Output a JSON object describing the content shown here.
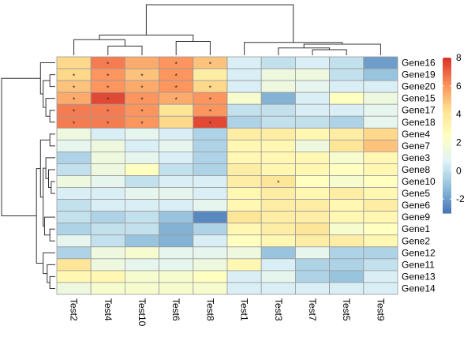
{
  "chart_data": {
    "type": "heatmap",
    "title": "",
    "columns": [
      "Test2",
      "Test4",
      "Test10",
      "Test6",
      "Test8",
      "Test1",
      "Test3",
      "Test7",
      "Test5",
      "Test9"
    ],
    "rows": [
      "Gene16",
      "Gene19",
      "Gene20",
      "Gene15",
      "Gene17",
      "Gene18",
      "Gene4",
      "Gene7",
      "Gene3",
      "Gene8",
      "Gene10",
      "Gene5",
      "Gene6",
      "Gene9",
      "Gene1",
      "Gene2",
      "Gene12",
      "Gene11",
      "Gene13",
      "Gene14"
    ],
    "values": [
      [
        4.5,
        6.5,
        5.5,
        6.0,
        5.0,
        0.5,
        0.0,
        0.5,
        0.0,
        -2.0
      ],
      [
        4.5,
        6.0,
        5.0,
        6.0,
        3.5,
        0.5,
        1.5,
        1.5,
        0.0,
        -1.0
      ],
      [
        5.0,
        6.0,
        5.5,
        6.0,
        4.5,
        0.5,
        1.5,
        1.0,
        0.5,
        0.5
      ],
      [
        5.5,
        7.5,
        6.0,
        5.5,
        6.0,
        2.0,
        -1.5,
        0.5,
        2.5,
        1.5
      ],
      [
        6.5,
        6.5,
        6.0,
        4.0,
        6.0,
        0.0,
        0.0,
        0.5,
        0.5,
        1.0
      ],
      [
        6.5,
        6.5,
        6.0,
        4.5,
        7.5,
        -0.5,
        0.0,
        0.0,
        -0.5,
        1.0
      ],
      [
        1.5,
        0.5,
        1.0,
        0.5,
        -0.5,
        3.5,
        3.5,
        3.0,
        3.5,
        4.5
      ],
      [
        1.0,
        1.5,
        0.5,
        1.0,
        -0.5,
        3.0,
        3.0,
        1.5,
        4.0,
        5.0
      ],
      [
        -0.5,
        1.5,
        1.0,
        0.5,
        -0.5,
        3.0,
        3.0,
        3.0,
        2.0,
        3.0
      ],
      [
        0.0,
        1.5,
        2.5,
        0.0,
        -0.5,
        3.5,
        3.0,
        3.0,
        2.5,
        3.0
      ],
      [
        1.5,
        1.0,
        0.0,
        0.5,
        0.5,
        3.5,
        4.0,
        2.5,
        2.0,
        2.5
      ],
      [
        0.5,
        0.5,
        1.0,
        1.0,
        0.5,
        3.0,
        3.5,
        3.0,
        3.5,
        3.0
      ],
      [
        0.0,
        0.5,
        0.5,
        0.5,
        1.0,
        3.0,
        3.5,
        3.5,
        3.0,
        3.5
      ],
      [
        0.0,
        -0.5,
        0.0,
        -1.0,
        -2.5,
        4.0,
        3.5,
        3.5,
        3.0,
        3.0
      ],
      [
        -0.5,
        0.0,
        0.0,
        -1.5,
        -0.5,
        3.0,
        3.5,
        4.0,
        2.0,
        2.5
      ],
      [
        1.0,
        0.0,
        -1.0,
        -1.5,
        0.5,
        2.5,
        3.0,
        3.5,
        3.5,
        3.0
      ],
      [
        -0.5,
        1.5,
        2.0,
        1.0,
        1.0,
        1.5,
        -1.0,
        1.0,
        -0.5,
        -0.5
      ],
      [
        4.0,
        1.5,
        1.0,
        1.0,
        1.5,
        3.0,
        0.5,
        -0.5,
        -0.5,
        0.0
      ],
      [
        3.0,
        3.0,
        2.0,
        2.0,
        2.5,
        0.5,
        1.0,
        -0.5,
        -1.0,
        0.5
      ],
      [
        1.5,
        2.0,
        2.0,
        2.0,
        2.0,
        0.5,
        0.5,
        0.5,
        0.5,
        0.5
      ]
    ],
    "marker": "*",
    "markers": [
      [
        0,
        1
      ],
      [
        0,
        3
      ],
      [
        0,
        4
      ],
      [
        1,
        0
      ],
      [
        1,
        1
      ],
      [
        1,
        2
      ],
      [
        1,
        3
      ],
      [
        2,
        0
      ],
      [
        2,
        1
      ],
      [
        2,
        2
      ],
      [
        2,
        3
      ],
      [
        2,
        4
      ],
      [
        3,
        0
      ],
      [
        3,
        1
      ],
      [
        3,
        2
      ],
      [
        3,
        3
      ],
      [
        3,
        4
      ],
      [
        4,
        0
      ],
      [
        4,
        1
      ],
      [
        4,
        2
      ],
      [
        4,
        4
      ],
      [
        5,
        0
      ],
      [
        5,
        1
      ],
      [
        5,
        2
      ],
      [
        5,
        4
      ],
      [
        10,
        6
      ]
    ],
    "color_scale": {
      "min": -3,
      "max": 8,
      "ticks": [
        8,
        6,
        4,
        2,
        0,
        -2
      ],
      "colors": [
        "#4575b4",
        "#91bfdb",
        "#e0f3f8",
        "#ffffbf",
        "#fee090",
        "#fc8d59",
        "#d73027"
      ]
    },
    "legend": "right",
    "column_dendrogram": {
      "labels": [
        "Test2",
        "Test4",
        "Test10",
        "Test6",
        "Test8",
        "Test1",
        "Test3",
        "Test7",
        "Test5",
        "Test9"
      ],
      "merges": [
        [
          -2,
          -3,
          10
        ],
        [
          -4,
          -5,
          15
        ],
        [
          -1,
          1,
          17
        ],
        [
          3,
          2,
          22
        ],
        [
          -8,
          -9,
          6
        ],
        [
          -7,
          5,
          8
        ],
        [
          -10,
          6,
          12
        ],
        [
          -6,
          7,
          14
        ],
        [
          4,
          8,
          55
        ]
      ]
    },
    "row_dendrogram": {
      "labels": [
        "Gene16",
        "Gene19",
        "Gene20",
        "Gene15",
        "Gene17",
        "Gene18",
        "Gene4",
        "Gene7",
        "Gene3",
        "Gene8",
        "Gene10",
        "Gene5",
        "Gene6",
        "Gene9",
        "Gene1",
        "Gene2",
        "Gene12",
        "Gene11",
        "Gene13",
        "Gene14"
      ],
      "merges": [
        [
          -2,
          -3,
          4
        ],
        [
          -5,
          -6,
          4
        ],
        [
          -4,
          2,
          7
        ],
        [
          1,
          3,
          9
        ],
        [
          -1,
          4,
          11
        ],
        [
          -7,
          -8,
          4
        ],
        [
          -11,
          -12,
          3
        ],
        [
          -10,
          7,
          5
        ],
        [
          -9,
          8,
          7
        ],
        [
          -15,
          -16,
          4
        ],
        [
          -14,
          10,
          8
        ],
        [
          9,
          11,
          9
        ],
        [
          6,
          12,
          11
        ],
        [
          -19,
          -20,
          4
        ],
        [
          -18,
          14,
          6
        ],
        [
          -17,
          15,
          9
        ],
        [
          13,
          16,
          14
        ],
        [
          5,
          17,
          40
        ]
      ]
    }
  }
}
